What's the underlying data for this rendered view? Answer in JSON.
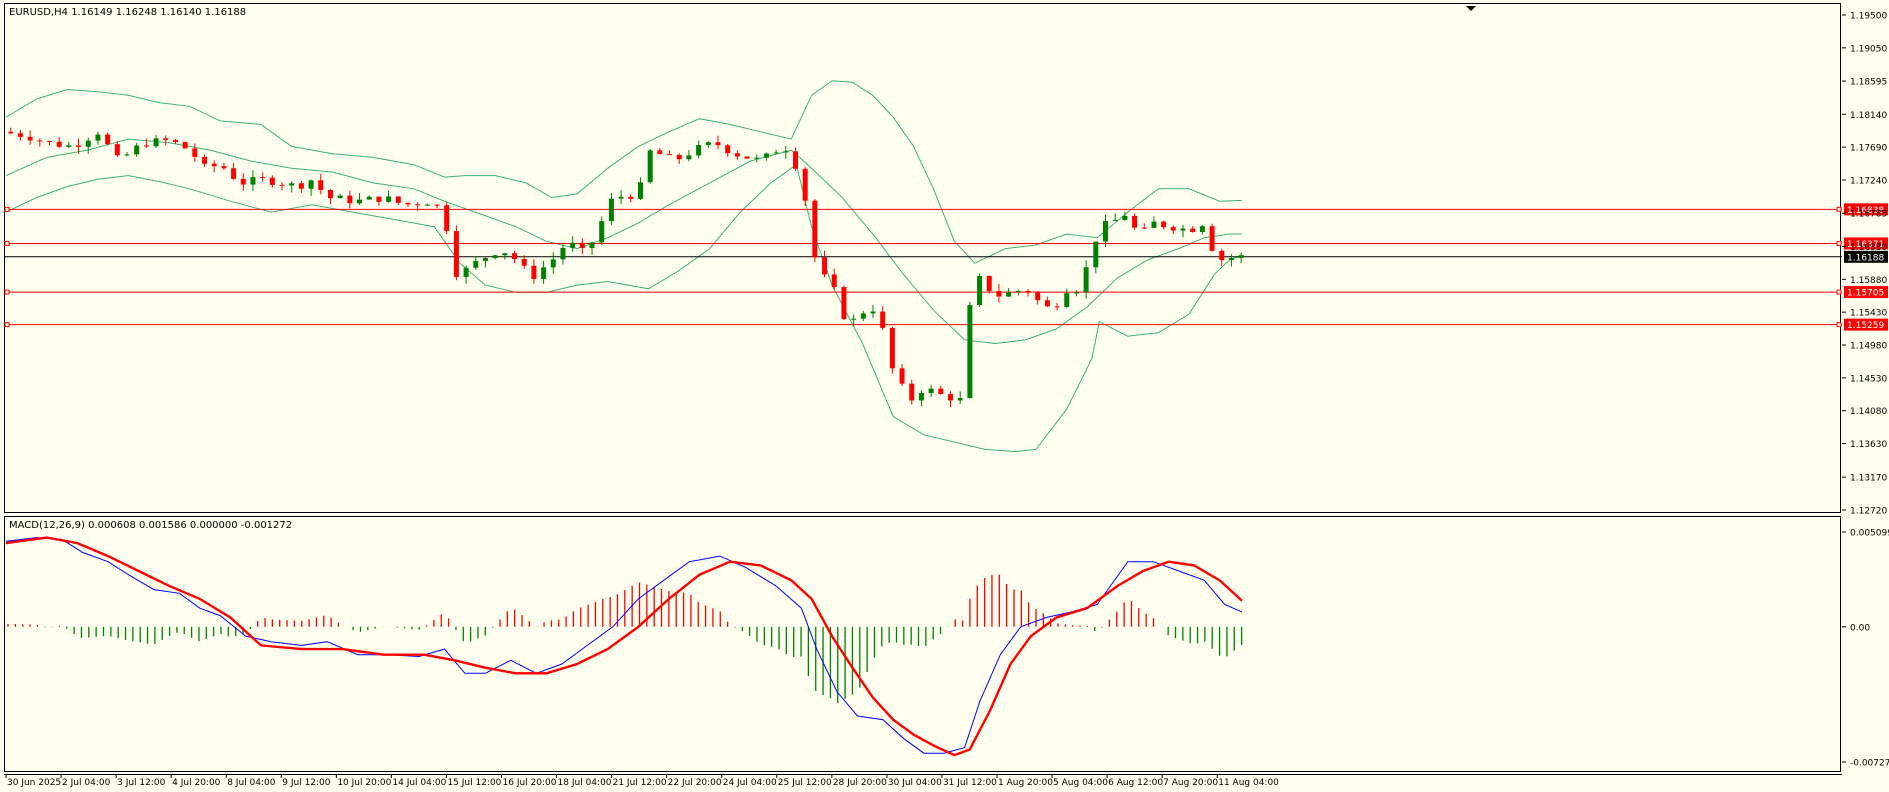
{
  "symbol_header": "EURUSD,H4  1.16149 1.16248 1.16140 1.16188",
  "macd_header": "MACD(12,26,9) 0.000608 0.001586 0.000000 -0.001272",
  "colors": {
    "background": "#FFFFF0",
    "bull": "#008000",
    "bear": "#FF0000",
    "band": "#3CB371",
    "level": "#FF0000",
    "macd_line": "#0000FF",
    "signal_line": "#FF0000"
  },
  "chart_data": [
    {
      "type": "candlestick",
      "title": "EURUSD,H4",
      "ohlc": {
        "open": 1.16149,
        "high": 1.16248,
        "low": 1.1614,
        "close": 1.16188
      },
      "ylim": [
        1.1272,
        1.195
      ],
      "y_ticks": [
        "1.19500",
        "1.19050",
        "1.18595",
        "1.18140",
        "1.17690",
        "1.17240",
        "1.16785",
        "1.16330",
        "1.15880",
        "1.15430",
        "1.14980",
        "1.14530",
        "1.14080",
        "1.13630",
        "1.13170",
        "1.12720"
      ],
      "price_labels": [
        {
          "value": "1.16838",
          "kind": "level"
        },
        {
          "value": "1.16371",
          "kind": "level"
        },
        {
          "value": "1.16188",
          "kind": "current"
        },
        {
          "value": "1.15705",
          "kind": "level"
        },
        {
          "value": "1.15259",
          "kind": "level"
        }
      ],
      "x_labels": [
        "30 Jun 2025",
        "2 Jul 04:00",
        "3 Jul 12:00",
        "4 Jul 20:00",
        "8 Jul 04:00",
        "9 Jul 12:00",
        "10 Jul 20:00",
        "14 Jul 04:00",
        "15 Jul 12:00",
        "16 Jul 20:00",
        "18 Jul 04:00",
        "21 Jul 12:00",
        "22 Jul 20:00",
        "24 Jul 04:00",
        "25 Jul 12:00",
        "28 Jul 20:00",
        "30 Jul 04:00",
        "31 Jul 12:00",
        "1 Aug 20:00",
        "5 Aug 04:00",
        "6 Aug 12:00",
        "7 Aug 20:00",
        "11 Aug 04:00"
      ],
      "indicators": [
        "Bollinger Bands"
      ],
      "close_path": [
        [
          0,
          1.179
        ],
        [
          25,
          1.1785
        ],
        [
          45,
          1.1775
        ],
        [
          70,
          1.177
        ],
        [
          95,
          1.179
        ],
        [
          115,
          1.175
        ],
        [
          140,
          1.1775
        ],
        [
          165,
          1.1778
        ],
        [
          185,
          1.1765
        ],
        [
          200,
          1.174
        ],
        [
          215,
          1.1745
        ],
        [
          235,
          1.172
        ],
        [
          260,
          1.1725
        ],
        [
          290,
          1.1715
        ],
        [
          305,
          1.1725
        ],
        [
          320,
          1.17
        ],
        [
          350,
          1.1695
        ],
        [
          375,
          1.17
        ],
        [
          395,
          1.169
        ],
        [
          420,
          1.1695
        ],
        [
          436,
          1.168
        ],
        [
          440,
          1.1595
        ],
        [
          455,
          1.16
        ],
        [
          470,
          1.1615
        ],
        [
          490,
          1.163
        ],
        [
          505,
          1.1615
        ],
        [
          520,
          1.159
        ],
        [
          545,
          1.162
        ],
        [
          555,
          1.164
        ],
        [
          570,
          1.1625
        ],
        [
          580,
          1.164
        ],
        [
          600,
          1.17
        ],
        [
          625,
          1.1705
        ],
        [
          637,
          1.1765
        ],
        [
          660,
          1.175
        ],
        [
          680,
          1.1765
        ],
        [
          700,
          1.1775
        ],
        [
          720,
          1.176
        ],
        [
          745,
          1.175
        ],
        [
          765,
          1.177
        ],
        [
          775,
          1.1765
        ],
        [
          780,
          1.174
        ],
        [
          790,
          1.169
        ],
        [
          800,
          1.16
        ],
        [
          815,
          1.158
        ],
        [
          825,
          1.154
        ],
        [
          835,
          1.153
        ],
        [
          850,
          1.155
        ],
        [
          862,
          1.1545
        ],
        [
          868,
          1.148
        ],
        [
          880,
          1.145
        ],
        [
          890,
          1.142
        ],
        [
          905,
          1.144
        ],
        [
          920,
          1.143
        ],
        [
          935,
          1.1425
        ],
        [
          945,
          1.142
        ],
        [
          948,
          1.154
        ],
        [
          960,
          1.159
        ],
        [
          975,
          1.1565
        ],
        [
          990,
          1.157
        ],
        [
          1005,
          1.1575
        ],
        [
          1015,
          1.156
        ],
        [
          1030,
          1.1545
        ],
        [
          1045,
          1.1575
        ],
        [
          1060,
          1.1575
        ],
        [
          1068,
          1.163
        ],
        [
          1080,
          1.166
        ],
        [
          1095,
          1.167
        ],
        [
          1105,
          1.168
        ],
        [
          1115,
          1.1645
        ],
        [
          1130,
          1.1665
        ],
        [
          1150,
          1.166
        ],
        [
          1165,
          1.1655
        ],
        [
          1178,
          1.1665
        ],
        [
          1186,
          1.1635
        ],
        [
          1195,
          1.1615
        ],
        [
          1212,
          1.1619
        ]
      ],
      "bollinger_upper": [
        [
          0,
          1.181
        ],
        [
          30,
          1.1835
        ],
        [
          60,
          1.1848
        ],
        [
          90,
          1.1845
        ],
        [
          120,
          1.184
        ],
        [
          150,
          1.183
        ],
        [
          180,
          1.1825
        ],
        [
          210,
          1.1805
        ],
        [
          250,
          1.18
        ],
        [
          280,
          1.177
        ],
        [
          320,
          1.176
        ],
        [
          360,
          1.1755
        ],
        [
          400,
          1.1745
        ],
        [
          430,
          1.1728
        ],
        [
          450,
          1.173
        ],
        [
          480,
          1.173
        ],
        [
          510,
          1.172
        ],
        [
          535,
          1.17
        ],
        [
          560,
          1.1705
        ],
        [
          590,
          1.174
        ],
        [
          620,
          1.177
        ],
        [
          650,
          1.179
        ],
        [
          680,
          1.1808
        ],
        [
          710,
          1.18
        ],
        [
          740,
          1.179
        ],
        [
          770,
          1.178
        ],
        [
          790,
          1.184
        ],
        [
          810,
          1.186
        ],
        [
          830,
          1.1858
        ],
        [
          850,
          1.184
        ],
        [
          870,
          1.181
        ],
        [
          890,
          1.177
        ],
        [
          910,
          1.171
        ],
        [
          930,
          1.164
        ],
        [
          950,
          1.161
        ],
        [
          980,
          1.163
        ],
        [
          1010,
          1.1635
        ],
        [
          1040,
          1.165
        ],
        [
          1070,
          1.1645
        ],
        [
          1100,
          1.168
        ],
        [
          1130,
          1.1712
        ],
        [
          1160,
          1.1712
        ],
        [
          1190,
          1.1695
        ],
        [
          1212,
          1.1696
        ]
      ],
      "bollinger_middle": [
        [
          0,
          1.173
        ],
        [
          40,
          1.1755
        ],
        [
          80,
          1.1765
        ],
        [
          120,
          1.178
        ],
        [
          160,
          1.1775
        ],
        [
          200,
          1.1765
        ],
        [
          240,
          1.175
        ],
        [
          280,
          1.174
        ],
        [
          320,
          1.1735
        ],
        [
          360,
          1.172
        ],
        [
          400,
          1.1712
        ],
        [
          430,
          1.1695
        ],
        [
          460,
          1.168
        ],
        [
          500,
          1.166
        ],
        [
          530,
          1.164
        ],
        [
          560,
          1.163
        ],
        [
          590,
          1.1645
        ],
        [
          620,
          1.1665
        ],
        [
          650,
          1.169
        ],
        [
          690,
          1.172
        ],
        [
          730,
          1.175
        ],
        [
          770,
          1.1765
        ],
        [
          790,
          1.174
        ],
        [
          820,
          1.17
        ],
        [
          850,
          1.165
        ],
        [
          880,
          1.1595
        ],
        [
          910,
          1.1545
        ],
        [
          940,
          1.1505
        ],
        [
          970,
          1.15
        ],
        [
          1000,
          1.1505
        ],
        [
          1030,
          1.152
        ],
        [
          1060,
          1.155
        ],
        [
          1090,
          1.159
        ],
        [
          1120,
          1.1615
        ],
        [
          1150,
          1.163
        ],
        [
          1175,
          1.1645
        ],
        [
          1200,
          1.165
        ],
        [
          1212,
          1.165
        ]
      ],
      "bollinger_lower": [
        [
          0,
          1.168
        ],
        [
          30,
          1.17
        ],
        [
          60,
          1.1715
        ],
        [
          90,
          1.1725
        ],
        [
          120,
          1.173
        ],
        [
          150,
          1.1722
        ],
        [
          180,
          1.1712
        ],
        [
          220,
          1.1695
        ],
        [
          260,
          1.168
        ],
        [
          300,
          1.169
        ],
        [
          340,
          1.168
        ],
        [
          380,
          1.167
        ],
        [
          420,
          1.166
        ],
        [
          445,
          1.161
        ],
        [
          470,
          1.158
        ],
        [
          500,
          1.157
        ],
        [
          530,
          1.157
        ],
        [
          560,
          1.158
        ],
        [
          590,
          1.1585
        ],
        [
          630,
          1.1575
        ],
        [
          660,
          1.16
        ],
        [
          690,
          1.163
        ],
        [
          720,
          1.168
        ],
        [
          750,
          1.172
        ],
        [
          775,
          1.1745
        ],
        [
          790,
          1.166
        ],
        [
          810,
          1.158
        ],
        [
          840,
          1.15
        ],
        [
          870,
          1.14
        ],
        [
          900,
          1.1375
        ],
        [
          930,
          1.1365
        ],
        [
          960,
          1.1355
        ],
        [
          990,
          1.1352
        ],
        [
          1010,
          1.1355
        ],
        [
          1040,
          1.141
        ],
        [
          1065,
          1.148
        ],
        [
          1072,
          1.153
        ],
        [
          1100,
          1.151
        ],
        [
          1130,
          1.1515
        ],
        [
          1160,
          1.154
        ],
        [
          1185,
          1.1595
        ],
        [
          1200,
          1.1615
        ],
        [
          1212,
          1.162
        ]
      ]
    },
    {
      "type": "line",
      "title": "MACD(12,26,9)",
      "values_shown": [
        "0.000608",
        "0.001586",
        "0.000000",
        "-0.001272"
      ],
      "ylim": [
        -0.007273,
        0.005099
      ],
      "y_ticks": [
        "0.005099",
        "0.00",
        "-0.007273"
      ],
      "series": [
        {
          "name": "MACD",
          "points": [
            [
              0,
              0.0046
            ],
            [
              30,
              0.0048
            ],
            [
              55,
              0.0047
            ],
            [
              75,
              0.004
            ],
            [
              100,
              0.0035
            ],
            [
              120,
              0.0028
            ],
            [
              145,
              0.002
            ],
            [
              170,
              0.0018
            ],
            [
              190,
              0.001
            ],
            [
              210,
              0.0006
            ],
            [
              235,
              -0.0005
            ],
            [
              260,
              -0.0008
            ],
            [
              290,
              -0.001
            ],
            [
              315,
              -0.0008
            ],
            [
              345,
              -0.0015
            ],
            [
              375,
              -0.0015
            ],
            [
              405,
              -0.0016
            ],
            [
              430,
              -0.0012
            ],
            [
              450,
              -0.0025
            ],
            [
              470,
              -0.0025
            ],
            [
              495,
              -0.0018
            ],
            [
              520,
              -0.0025
            ],
            [
              545,
              -0.002
            ],
            [
              570,
              -0.001
            ],
            [
              595,
              0.0
            ],
            [
              620,
              0.0015
            ],
            [
              645,
              0.0025
            ],
            [
              670,
              0.0035
            ],
            [
              700,
              0.0038
            ],
            [
              725,
              0.0032
            ],
            [
              755,
              0.0022
            ],
            [
              780,
              0.001
            ],
            [
              795,
              -0.0012
            ],
            [
              815,
              -0.0035
            ],
            [
              835,
              -0.0048
            ],
            [
              860,
              -0.005
            ],
            [
              880,
              -0.006
            ],
            [
              900,
              -0.0068
            ],
            [
              920,
              -0.0068
            ],
            [
              940,
              -0.0065
            ],
            [
              955,
              -0.004
            ],
            [
              975,
              -0.0015
            ],
            [
              995,
              0.0
            ],
            [
              1020,
              0.0005
            ],
            [
              1045,
              0.0008
            ],
            [
              1070,
              0.0012
            ],
            [
              1100,
              0.0035
            ],
            [
              1125,
              0.0035
            ],
            [
              1150,
              0.003
            ],
            [
              1175,
              0.0025
            ],
            [
              1195,
              0.0012
            ],
            [
              1212,
              0.0008
            ]
          ]
        },
        {
          "name": "Signal",
          "points": [
            [
              0,
              0.0045
            ],
            [
              40,
              0.0048
            ],
            [
              70,
              0.0045
            ],
            [
              100,
              0.0038
            ],
            [
              130,
              0.003
            ],
            [
              160,
              0.0022
            ],
            [
              190,
              0.0015
            ],
            [
              220,
              0.0005
            ],
            [
              250,
              -0.001
            ],
            [
              290,
              -0.0012
            ],
            [
              330,
              -0.0012
            ],
            [
              370,
              -0.0015
            ],
            [
              410,
              -0.0015
            ],
            [
              440,
              -0.0018
            ],
            [
              470,
              -0.0022
            ],
            [
              500,
              -0.0025
            ],
            [
              530,
              -0.0025
            ],
            [
              560,
              -0.002
            ],
            [
              590,
              -0.0012
            ],
            [
              620,
              0.0
            ],
            [
              650,
              0.0015
            ],
            [
              680,
              0.0028
            ],
            [
              710,
              0.0035
            ],
            [
              740,
              0.0033
            ],
            [
              770,
              0.0025
            ],
            [
              790,
              0.0015
            ],
            [
              810,
              -0.0005
            ],
            [
              830,
              -0.0022
            ],
            [
              850,
              -0.0038
            ],
            [
              870,
              -0.005
            ],
            [
              890,
              -0.0058
            ],
            [
              910,
              -0.0064
            ],
            [
              930,
              -0.0069
            ],
            [
              945,
              -0.0066
            ],
            [
              965,
              -0.0045
            ],
            [
              985,
              -0.002
            ],
            [
              1005,
              -0.0005
            ],
            [
              1030,
              0.0005
            ],
            [
              1060,
              0.001
            ],
            [
              1090,
              0.0022
            ],
            [
              1115,
              0.003
            ],
            [
              1140,
              0.0035
            ],
            [
              1165,
              0.0033
            ],
            [
              1190,
              0.0025
            ],
            [
              1212,
              0.0014
            ]
          ]
        }
      ]
    }
  ]
}
